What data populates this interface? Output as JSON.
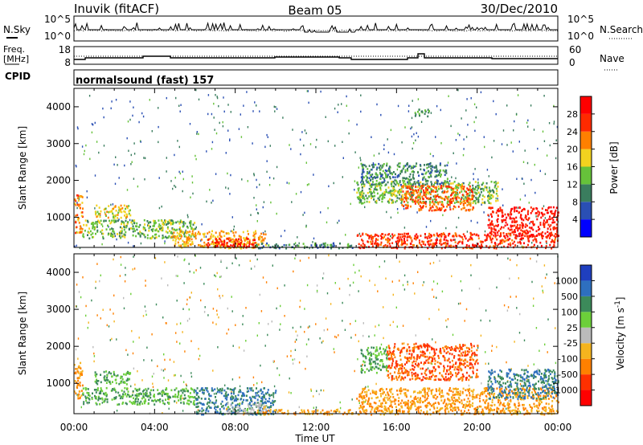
{
  "header": {
    "station": "Inuvik (fitACF)",
    "beam": "Beam 05",
    "date": "30/Dec/2010"
  },
  "top_panels": {
    "nsky_label": "N.Sky",
    "nsky_ticks": [
      "10^5",
      "10^0"
    ],
    "nsearch_label": "N.Search",
    "nsearch_ticks": [
      "10^5",
      "10^0"
    ],
    "freq_label_1": "Freq.",
    "freq_label_2": "[MHz]",
    "freq_ticks": [
      "18",
      "8"
    ],
    "nave_label": "Nave",
    "nave_ticks": [
      "60",
      "0"
    ],
    "cpid_label": "CPID",
    "cpid_value": "normalsound (fast) 157"
  },
  "chart_data": [
    {
      "type": "heatmap",
      "name": "power",
      "ylabel": "Slant Range [km]",
      "xlabel": "Time UT",
      "xlim": [
        0,
        24
      ],
      "ylim": [
        180,
        4500
      ],
      "y_ticks": [
        1000,
        2000,
        3000,
        4000
      ],
      "y_tick_labels": [
        "1000",
        "2000",
        "3000",
        "4000"
      ],
      "x_ticks": [
        0,
        4,
        8,
        12,
        16,
        20,
        24
      ],
      "x_tick_labels": [
        "00:00",
        "04:00",
        "08:00",
        "12:00",
        "16:00",
        "20:00",
        "00:00"
      ],
      "colorbar": {
        "label": "Power [dB]",
        "labels": [
          "4",
          "8",
          "12",
          "16",
          "20",
          "24",
          "28"
        ],
        "colors": [
          "#0000ff",
          "#2a4fb4",
          "#3a7d5e",
          "#66c23a",
          "#f2d21f",
          "#ff8000",
          "#ff2a00",
          "#ff0000"
        ]
      },
      "regions": [
        {
          "t0": 0.0,
          "t1": 0.4,
          "r0": 600,
          "r1": 1650,
          "value": 22
        },
        {
          "t0": 1.0,
          "t1": 2.8,
          "r0": 1000,
          "r1": 1350,
          "value": 18
        },
        {
          "t0": 0.4,
          "t1": 6.0,
          "r0": 450,
          "r1": 950,
          "value": 14
        },
        {
          "t0": 4.8,
          "t1": 9.5,
          "r0": 180,
          "r1": 650,
          "value": 20
        },
        {
          "t0": 6.5,
          "t1": 9.0,
          "r0": 200,
          "r1": 450,
          "value": 28
        },
        {
          "t0": 9.0,
          "t1": 13.8,
          "r0": 180,
          "r1": 320,
          "value": 10
        },
        {
          "t0": 14.0,
          "t1": 21.0,
          "r0": 1400,
          "r1": 2000,
          "value": 14
        },
        {
          "t0": 16.2,
          "t1": 19.8,
          "r0": 1200,
          "r1": 1900,
          "value": 24
        },
        {
          "t0": 14.0,
          "t1": 24.0,
          "r0": 180,
          "r1": 600,
          "value": 26
        },
        {
          "t0": 20.5,
          "t1": 24.0,
          "r0": 500,
          "r1": 1300,
          "value": 28
        },
        {
          "t0": 16.8,
          "t1": 17.6,
          "r0": 3750,
          "r1": 3950,
          "value": 12
        },
        {
          "t0": 14.2,
          "t1": 18.5,
          "r0": 1900,
          "r1": 2500,
          "value": 10
        }
      ]
    },
    {
      "type": "heatmap",
      "name": "velocity",
      "ylabel": "Slant Range [km]",
      "xlabel": "Time UT",
      "xlim": [
        0,
        24
      ],
      "ylim": [
        180,
        4500
      ],
      "y_ticks": [
        1000,
        2000,
        3000,
        4000
      ],
      "y_tick_labels": [
        "1000",
        "2000",
        "3000",
        "4000"
      ],
      "x_ticks": [
        0,
        4,
        8,
        12,
        16,
        20,
        24
      ],
      "x_tick_labels": [
        "00:00",
        "04:00",
        "08:00",
        "12:00",
        "16:00",
        "20:00",
        "00:00"
      ],
      "colorbar": {
        "label": "Velocity [m s^-1]",
        "labels": [
          "1000",
          "500",
          "100",
          "25",
          "-25",
          "-100",
          "-500",
          "-1000"
        ],
        "colors": [
          "#1f3fbf",
          "#2e6fbf",
          "#3c8a5a",
          "#6ccf3a",
          "#bbbbbb",
          "#f5b41e",
          "#ff8000",
          "#ff3000",
          "#ff0000"
        ]
      },
      "regions": [
        {
          "t0": 0.0,
          "t1": 0.4,
          "r0": 600,
          "r1": 1650,
          "value": -100
        },
        {
          "t0": 1.0,
          "t1": 2.8,
          "r0": 1000,
          "r1": 1350,
          "value": 100
        },
        {
          "t0": 0.4,
          "t1": 6.0,
          "r0": 450,
          "r1": 900,
          "value": 100
        },
        {
          "t0": 6.0,
          "t1": 10.0,
          "r0": 180,
          "r1": 900,
          "value": 500
        },
        {
          "t0": 7.5,
          "t1": 9.5,
          "r0": 200,
          "r1": 500,
          "value": 0
        },
        {
          "t0": 9.0,
          "t1": 13.8,
          "r0": 180,
          "r1": 320,
          "value": -100
        },
        {
          "t0": 15.5,
          "t1": 20.0,
          "r0": 1100,
          "r1": 2100,
          "value": -500
        },
        {
          "t0": 14.0,
          "t1": 24.0,
          "r0": 180,
          "r1": 900,
          "value": -100
        },
        {
          "t0": 20.5,
          "t1": 24.0,
          "r0": 600,
          "r1": 1400,
          "value": 500
        },
        {
          "t0": 14.2,
          "t1": 15.5,
          "r0": 1300,
          "r1": 2000,
          "value": 100
        }
      ]
    }
  ]
}
